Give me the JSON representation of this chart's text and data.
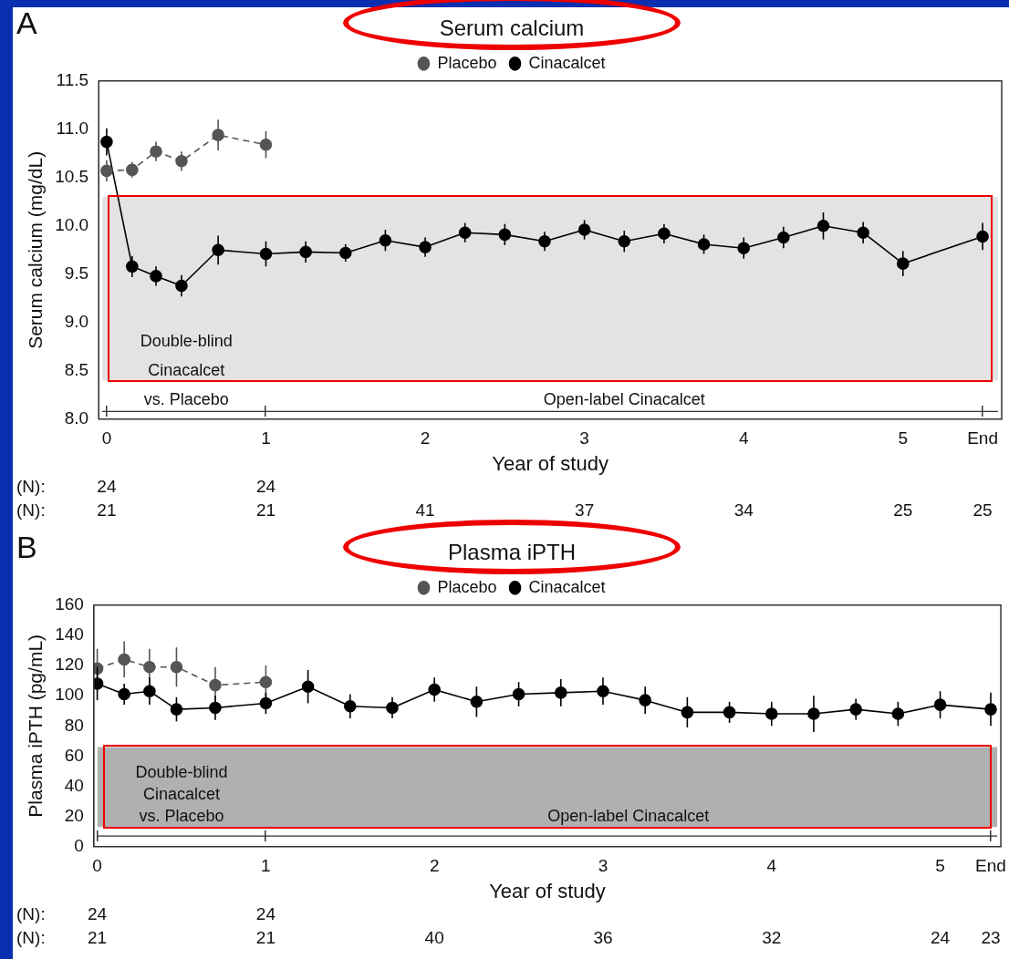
{
  "chart_data": [
    {
      "type": "line",
      "title": "Serum calcium",
      "xlabel": "Year of study",
      "ylabel": "Serum calcium (mg/dL)",
      "legend": "top",
      "marker": "circle",
      "grid": false,
      "xlim": [
        -0.05,
        5.62
      ],
      "xticks": [
        0,
        1,
        2,
        3,
        4,
        5,
        {
          "value": 5.5,
          "label": "End"
        }
      ],
      "ylim": [
        8,
        11.5
      ],
      "yticks": [
        {
          "value": 8,
          "label": "8.0"
        },
        8.5,
        {
          "value": 9,
          "label": "9.0"
        },
        9.5,
        {
          "value": 10,
          "label": "10.0"
        },
        10.5,
        {
          "value": 11,
          "label": "11.0"
        },
        11.5
      ],
      "series": [
        {
          "name": "Placebo",
          "color": "#555555",
          "line_style": "dashed",
          "x": [
            0,
            0.16,
            0.31,
            0.47,
            0.7,
            1
          ],
          "values": [
            10.57,
            10.58,
            10.77,
            10.67,
            10.94,
            10.84
          ],
          "errors": [
            0.11,
            0.08,
            0.1,
            0.1,
            0.16,
            0.14
          ]
        },
        {
          "name": "Cinacalcet",
          "color": "#000000",
          "line_style": "solid",
          "x": [
            0,
            0.16,
            0.31,
            0.47,
            0.7,
            1,
            1.25,
            1.5,
            1.75,
            2,
            2.25,
            2.5,
            2.75,
            3,
            3.25,
            3.5,
            3.75,
            4,
            4.25,
            4.5,
            4.75,
            5,
            5.5
          ],
          "values": [
            10.87,
            9.58,
            9.48,
            9.38,
            9.75,
            9.71,
            9.73,
            9.72,
            9.85,
            9.78,
            9.93,
            9.91,
            9.84,
            9.96,
            9.84,
            9.92,
            9.81,
            9.77,
            9.88,
            10.0,
            9.93,
            9.61,
            9.89
          ],
          "errors": [
            0.14,
            0.11,
            0.1,
            0.11,
            0.15,
            0.13,
            0.11,
            0.09,
            0.11,
            0.1,
            0.1,
            0.11,
            0.1,
            0.1,
            0.11,
            0.1,
            0.1,
            0.11,
            0.11,
            0.14,
            0.11,
            0.13,
            0.14
          ]
        }
      ],
      "bands": [
        {
          "axis": "y",
          "from": 8.4,
          "to": 10.3,
          "color": "#e3e3e3"
        }
      ],
      "ref_lines": [
        {
          "axis": "y",
          "value": 8.08,
          "color": "#333333"
        }
      ],
      "annotations": [
        "A",
        "Double-blind\nCinacalcet\nvs. Placebo",
        "Open-label Cinacalcet",
        "(N):",
        "24",
        "24",
        "(N):",
        "21",
        "21",
        "41",
        "37",
        "34",
        "25",
        "25"
      ]
    },
    {
      "type": "line",
      "title": "Plasma iPTH",
      "xlabel": "Year of study",
      "ylabel": "Plasma iPTH (pg/mL)",
      "legend": "top",
      "marker": "circle",
      "grid": false,
      "xlim": [
        -0.02,
        5.36
      ],
      "xticks": [
        0,
        1,
        2,
        3,
        4,
        5,
        {
          "value": 5.3,
          "label": "End"
        }
      ],
      "ylim": [
        0,
        160
      ],
      "yticks": [
        0,
        20,
        40,
        60,
        80,
        100,
        120,
        140,
        160
      ],
      "series": [
        {
          "name": "Placebo",
          "color": "#555555",
          "line_style": "dashed",
          "x": [
            0,
            0.16,
            0.31,
            0.47,
            0.7,
            1
          ],
          "values": [
            118,
            124,
            119,
            119,
            107,
            109
          ],
          "errors": [
            13,
            12,
            12,
            13,
            12,
            11
          ]
        },
        {
          "name": "Cinacalcet",
          "color": "#000000",
          "line_style": "solid",
          "x": [
            0,
            0.16,
            0.31,
            0.47,
            0.7,
            1,
            1.25,
            1.5,
            1.75,
            2,
            2.25,
            2.5,
            2.75,
            3,
            3.25,
            3.5,
            3.75,
            4,
            4.25,
            4.5,
            4.75,
            5,
            5.3
          ],
          "values": [
            108,
            101,
            103,
            91,
            92,
            95,
            106,
            93,
            92,
            104,
            96,
            101,
            102,
            103,
            97,
            89,
            89,
            88,
            88,
            91,
            88,
            94,
            91
          ],
          "errors": [
            11,
            7,
            9,
            8,
            8,
            7,
            11,
            8,
            7,
            8,
            10,
            8,
            9,
            9,
            9,
            10,
            7,
            8,
            12,
            7,
            8,
            9,
            11
          ]
        }
      ],
      "bands": [
        {
          "axis": "y",
          "from": 13,
          "to": 66,
          "color": "#b0b0b0"
        }
      ],
      "ref_lines": [
        {
          "axis": "y",
          "value": 7,
          "color": "#333333"
        }
      ],
      "annotations": [
        "B",
        "Double-blind\nCinacalcet\nvs. Placebo",
        "Open-label Cinacalcet",
        "(N):",
        "24",
        "24",
        "(N):",
        "21",
        "21",
        "40",
        "36",
        "32",
        "24",
        "23"
      ]
    }
  ]
}
